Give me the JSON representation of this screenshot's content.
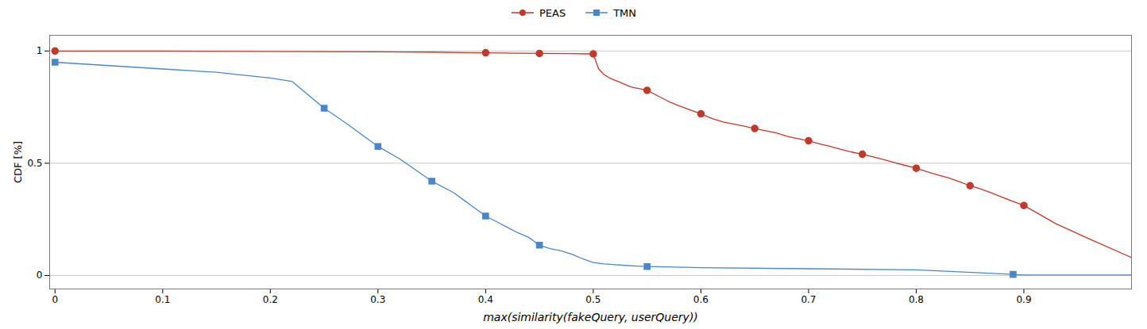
{
  "chart_data": {
    "type": "line",
    "xlabel": "max(similarity(fakeQuery, userQuery))",
    "ylabel": "CDF [%]",
    "xlim": [
      -0.005,
      1.0
    ],
    "ylim": [
      -0.06,
      1.07
    ],
    "xticks": [
      0.0,
      0.1,
      0.2,
      0.3,
      0.4,
      0.5,
      0.6,
      0.7,
      0.8,
      0.9
    ],
    "yticks": [
      0.0,
      0.5,
      1.0
    ],
    "grid": "y",
    "legend": "top",
    "series": [
      {
        "name": "PEAS",
        "color": "#c0392b",
        "marker": "circle",
        "x": [
          0.0,
          0.05,
          0.1,
          0.15,
          0.2,
          0.25,
          0.3,
          0.35,
          0.38,
          0.4,
          0.43,
          0.45,
          0.48,
          0.5,
          0.505,
          0.51,
          0.515,
          0.52,
          0.525,
          0.53,
          0.535,
          0.54,
          0.545,
          0.55,
          0.56,
          0.57,
          0.58,
          0.59,
          0.6,
          0.61,
          0.62,
          0.63,
          0.64,
          0.65,
          0.66,
          0.67,
          0.68,
          0.69,
          0.7,
          0.71,
          0.72,
          0.73,
          0.74,
          0.75,
          0.76,
          0.77,
          0.78,
          0.79,
          0.8,
          0.81,
          0.82,
          0.83,
          0.84,
          0.85,
          0.86,
          0.87,
          0.88,
          0.89,
          0.9,
          0.93,
          0.96,
          1.0
        ],
        "values": [
          1.0,
          1.0,
          1.0,
          0.999,
          0.998,
          0.997,
          0.996,
          0.995,
          0.993,
          0.992,
          0.99,
          0.989,
          0.988,
          0.987,
          0.92,
          0.895,
          0.88,
          0.87,
          0.86,
          0.85,
          0.84,
          0.835,
          0.83,
          0.825,
          0.8,
          0.775,
          0.755,
          0.738,
          0.72,
          0.7,
          0.685,
          0.675,
          0.665,
          0.655,
          0.645,
          0.635,
          0.62,
          0.61,
          0.6,
          0.587,
          0.575,
          0.562,
          0.55,
          0.54,
          0.528,
          0.516,
          0.503,
          0.49,
          0.478,
          0.462,
          0.448,
          0.435,
          0.418,
          0.4,
          0.385,
          0.368,
          0.348,
          0.33,
          0.312,
          0.23,
          0.165,
          0.08
        ],
        "marker_x": [
          0.0,
          0.4,
          0.45,
          0.5,
          0.55,
          0.6,
          0.65,
          0.7,
          0.75,
          0.8,
          0.85,
          0.9
        ],
        "marker_values": [
          1.0,
          0.992,
          0.989,
          0.987,
          0.825,
          0.72,
          0.655,
          0.6,
          0.54,
          0.478,
          0.4,
          0.312
        ]
      },
      {
        "name": "TMN",
        "color": "#4a86c8",
        "marker": "square",
        "x": [
          0.0,
          0.05,
          0.1,
          0.15,
          0.17,
          0.2,
          0.22,
          0.25,
          0.27,
          0.3,
          0.32,
          0.35,
          0.37,
          0.38,
          0.4,
          0.41,
          0.42,
          0.43,
          0.44,
          0.45,
          0.46,
          0.47,
          0.48,
          0.49,
          0.5,
          0.51,
          0.52,
          0.53,
          0.54,
          0.55,
          0.6,
          0.7,
          0.8,
          0.89,
          0.9,
          1.0
        ],
        "values": [
          0.95,
          0.935,
          0.92,
          0.905,
          0.895,
          0.88,
          0.865,
          0.745,
          0.68,
          0.575,
          0.52,
          0.42,
          0.37,
          0.335,
          0.265,
          0.24,
          0.215,
          0.19,
          0.17,
          0.135,
          0.12,
          0.11,
          0.095,
          0.075,
          0.058,
          0.052,
          0.048,
          0.045,
          0.042,
          0.04,
          0.035,
          0.03,
          0.025,
          0.005,
          0.002,
          0.002
        ],
        "marker_x": [
          0.0,
          0.25,
          0.3,
          0.35,
          0.4,
          0.45,
          0.55,
          0.89
        ],
        "marker_values": [
          0.95,
          0.745,
          0.575,
          0.42,
          0.265,
          0.135,
          0.04,
          0.005
        ]
      }
    ]
  }
}
